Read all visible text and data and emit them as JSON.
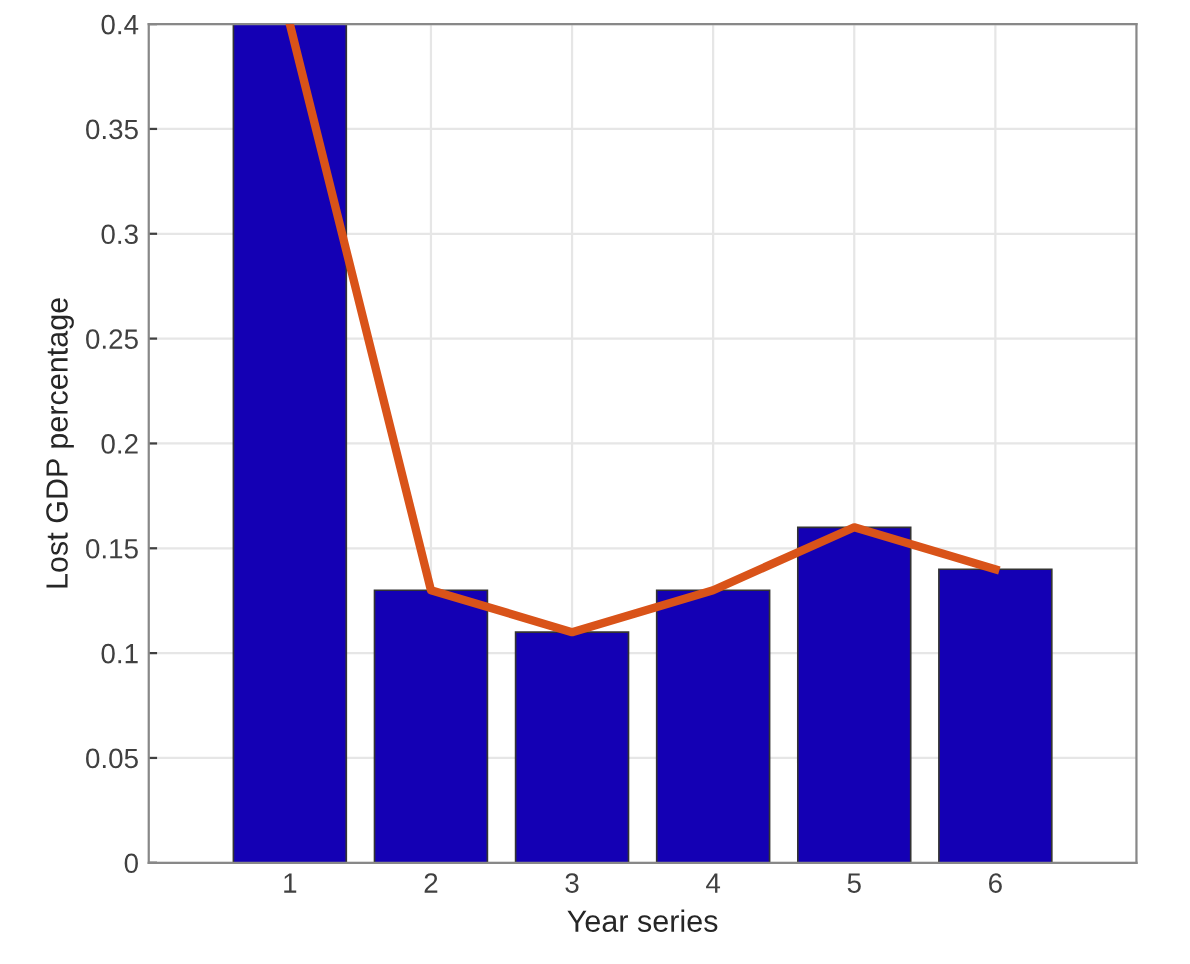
{
  "chart_data": {
    "type": "bar",
    "xlabel": "Year series",
    "ylabel": "Lost GDP percentage",
    "x": [
      1,
      2,
      3,
      4,
      5,
      6
    ],
    "series": [
      {
        "color": "#1400b4",
        "values": [
          0.4,
          0.13,
          0.11,
          0.13,
          0.16,
          0.14
        ]
      },
      {
        "type": "line",
        "color": "#d95319",
        "values": [
          0.4,
          0.13,
          0.11,
          0.13,
          0.16,
          0.14
        ]
      }
    ],
    "xlim": [
      0,
      7
    ],
    "xticks": [
      1,
      2,
      3,
      4,
      5,
      6
    ],
    "ylim": [
      0,
      0.4
    ],
    "yticks": [
      0,
      0.05,
      0.1,
      0.15,
      0.2,
      0.25,
      0.3,
      0.35,
      0.4
    ],
    "grid": true
  }
}
